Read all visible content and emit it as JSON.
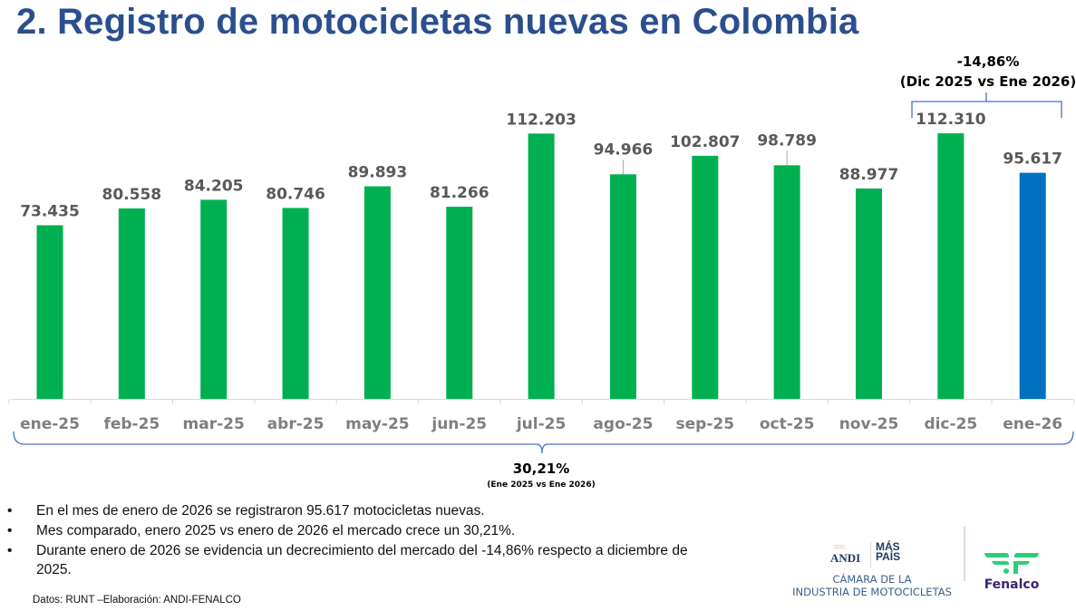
{
  "slide": {
    "title": "2. Registro de motocicletas nuevas en Colombia"
  },
  "chart_data": {
    "type": "bar",
    "title": "2. Registro de motocicletas nuevas en Colombia",
    "xlabel": "",
    "ylabel": "",
    "ylim": [
      0,
      120000
    ],
    "grid": false,
    "legend": "none",
    "categories": [
      "ene-25",
      "feb-25",
      "mar-25",
      "abr-25",
      "may-25",
      "jun-25",
      "jul-25",
      "ago-25",
      "sep-25",
      "oct-25",
      "nov-25",
      "dic-25",
      "ene-26"
    ],
    "values": [
      73435,
      80558,
      84205,
      80746,
      89893,
      81266,
      112203,
      94966,
      102807,
      98789,
      88977,
      112310,
      95617
    ],
    "data_labels": [
      "73.435",
      "80.558",
      "84.205",
      "80.746",
      "89.893",
      "81.266",
      "112.203",
      "94.966",
      "102.807",
      "98.789",
      "88.977",
      "112.310",
      "95.617"
    ],
    "colors": {
      "default": "#00b050",
      "highlight": "#0070c0",
      "highlight_index": 12,
      "bracket": "#4472c4"
    },
    "annotations": [
      {
        "id": "monthly",
        "value": "-14,86%",
        "detail": "(Dic 2025 vs Ene 2026)",
        "from": "dic-25",
        "to": "ene-26"
      },
      {
        "id": "yearly",
        "value": "30,21%",
        "detail": "(Ene 2025 vs Ene 2026)",
        "from": "ene-25",
        "to": "ene-26"
      }
    ]
  },
  "bullets": [
    "En el mes de enero de 2026 se registraron 95.617 motocicletas nuevas.",
    "Mes comparado, enero 2025 vs enero de 2026 el mercado crece un 30,21%.",
    "Durante enero de 2026 se evidencia un decrecimiento del mercado del -14,86% respecto a diciembre de 2025."
  ],
  "bullet_glyph": "•",
  "source": "Datos: RUNT –Elaboración: ANDI-FENALCO",
  "logos": {
    "andi": {
      "brand": "ANDI",
      "program_line1": "MÁS",
      "program_line2": "PAÍS",
      "chamber_line1": "CÁMARA DE LA",
      "chamber_line2": "INDUSTRIA DE MOTOCICLETAS"
    },
    "fenalco": {
      "brand": "Fenalco"
    }
  }
}
